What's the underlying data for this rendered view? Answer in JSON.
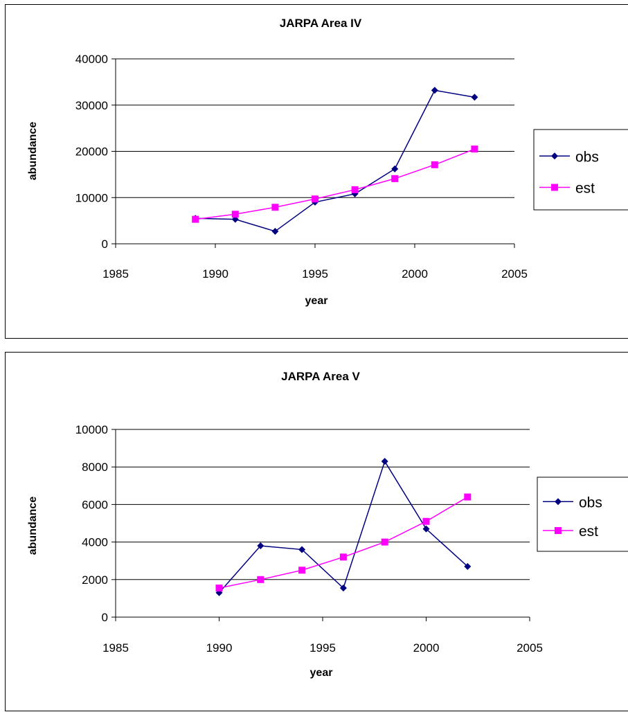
{
  "chart_data": [
    {
      "type": "line",
      "title": "JARPA Area IV",
      "xlabel": "year",
      "ylabel": "abundance",
      "xlim": [
        1985,
        2005
      ],
      "ylim": [
        0,
        40000
      ],
      "x_ticks": [
        1985,
        1990,
        1995,
        2000,
        2005
      ],
      "y_ticks": [
        0,
        10000,
        20000,
        30000,
        40000
      ],
      "grid": "horizontal",
      "legend": "right",
      "series": [
        {
          "name": "obs",
          "color": "#000080",
          "marker": "diamond",
          "x": [
            1989,
            1991,
            1993,
            1995,
            1997,
            1999,
            2001,
            2003
          ],
          "y": [
            5500,
            5300,
            2700,
            9000,
            10800,
            16200,
            33200,
            31700
          ]
        },
        {
          "name": "est",
          "color": "#FF00FF",
          "marker": "square",
          "x": [
            1989,
            1991,
            1993,
            1995,
            1997,
            1999,
            2001,
            2003
          ],
          "y": [
            5300,
            6400,
            7900,
            9700,
            11700,
            14100,
            17100,
            20500
          ]
        }
      ]
    },
    {
      "type": "line",
      "title": "JARPA Area V",
      "xlabel": "year",
      "ylabel": "abundance",
      "xlim": [
        1985,
        2005
      ],
      "ylim": [
        0,
        10000
      ],
      "x_ticks": [
        1985,
        1990,
        1995,
        2000,
        2005
      ],
      "y_ticks": [
        0,
        2000,
        4000,
        6000,
        8000,
        10000
      ],
      "grid": "horizontal",
      "legend": "right",
      "series": [
        {
          "name": "obs",
          "color": "#000080",
          "marker": "diamond",
          "x": [
            1990,
            1992,
            1994,
            1996,
            1998,
            2000,
            2002
          ],
          "y": [
            1300,
            3800,
            3600,
            1550,
            8300,
            4700,
            2700
          ]
        },
        {
          "name": "est",
          "color": "#FF00FF",
          "marker": "square",
          "x": [
            1990,
            1992,
            1994,
            1996,
            1998,
            2000,
            2002
          ],
          "y": [
            1550,
            2000,
            2500,
            3200,
            4000,
            5100,
            6400
          ]
        }
      ]
    }
  ]
}
